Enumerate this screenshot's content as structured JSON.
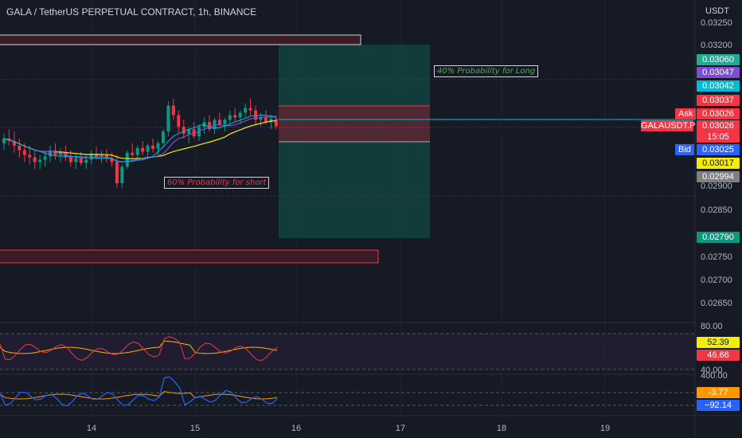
{
  "header": {
    "title": "GALA / TetherUS PERPETUAL CONTRACT, 1h, BINANCE",
    "currency": "USDT"
  },
  "chart_data": {
    "type": "candlestick",
    "symbol": "GALAUSDT.P",
    "timeframe": "1h",
    "exchange": "BINANCE",
    "price_axis": {
      "ticks": [
        "0.03250",
        "0.03200",
        "0.02900",
        "0.02850",
        "0.02750",
        "0.02700",
        "0.02650"
      ],
      "ylim": [
        0.0262,
        0.0327
      ]
    },
    "time_axis": {
      "ticks": [
        "14",
        "15",
        "16",
        "17",
        "18",
        "19"
      ]
    },
    "candles": [
      [
        0.0299,
        0.0301,
        0.02975,
        0.03
      ],
      [
        0.03,
        0.0302,
        0.02985,
        0.02995
      ],
      [
        0.02995,
        0.03015,
        0.0297,
        0.02985
      ],
      [
        0.02985,
        0.03,
        0.0296,
        0.02975
      ],
      [
        0.02975,
        0.0299,
        0.0295,
        0.02965
      ],
      [
        0.02965,
        0.02985,
        0.02945,
        0.0296
      ],
      [
        0.0296,
        0.02975,
        0.02935,
        0.0295
      ],
      [
        0.0295,
        0.02965,
        0.02935,
        0.02955
      ],
      [
        0.02955,
        0.02975,
        0.0294,
        0.02962
      ],
      [
        0.02962,
        0.02985,
        0.0295,
        0.02975
      ],
      [
        0.02975,
        0.0299,
        0.02955,
        0.02965
      ],
      [
        0.02965,
        0.0298,
        0.0295,
        0.0297
      ],
      [
        0.0297,
        0.02985,
        0.02952,
        0.0296
      ],
      [
        0.0296,
        0.02975,
        0.0294,
        0.0295
      ],
      [
        0.0295,
        0.02968,
        0.02935,
        0.02958
      ],
      [
        0.02958,
        0.02972,
        0.02942,
        0.02948
      ],
      [
        0.02948,
        0.02965,
        0.02935,
        0.02955
      ],
      [
        0.02955,
        0.02975,
        0.02945,
        0.02968
      ],
      [
        0.02968,
        0.02982,
        0.02955,
        0.0296
      ],
      [
        0.0296,
        0.02975,
        0.02948,
        0.02965
      ],
      [
        0.02965,
        0.02978,
        0.0295,
        0.02958
      ],
      [
        0.02958,
        0.0297,
        0.0294,
        0.0295
      ],
      [
        0.0295,
        0.02965,
        0.02895,
        0.02905
      ],
      [
        0.02905,
        0.02945,
        0.02895,
        0.0294
      ],
      [
        0.0294,
        0.02975,
        0.02935,
        0.0297
      ],
      [
        0.0297,
        0.0299,
        0.0296,
        0.02965
      ],
      [
        0.02965,
        0.02985,
        0.02955,
        0.0298
      ],
      [
        0.0298,
        0.02995,
        0.02965,
        0.02972
      ],
      [
        0.02972,
        0.0299,
        0.0296,
        0.02985
      ],
      [
        0.02985,
        0.03,
        0.0297,
        0.02978
      ],
      [
        0.02978,
        0.02995,
        0.02965,
        0.0299
      ],
      [
        0.0299,
        0.0302,
        0.0298,
        0.03015
      ],
      [
        0.03015,
        0.0308,
        0.03005,
        0.0307
      ],
      [
        0.0307,
        0.03085,
        0.0304,
        0.0305
      ],
      [
        0.0305,
        0.0306,
        0.0301,
        0.03025
      ],
      [
        0.03025,
        0.0304,
        0.03,
        0.0301
      ],
      [
        0.0301,
        0.03025,
        0.0299,
        0.0302
      ],
      [
        0.0302,
        0.03035,
        0.03,
        0.03005
      ],
      [
        0.03005,
        0.0303,
        0.02995,
        0.03025
      ],
      [
        0.03025,
        0.03045,
        0.0301,
        0.03035
      ],
      [
        0.03035,
        0.0305,
        0.03015,
        0.0302
      ],
      [
        0.0302,
        0.03045,
        0.0301,
        0.0304
      ],
      [
        0.0304,
        0.03055,
        0.03025,
        0.0303
      ],
      [
        0.0303,
        0.03045,
        0.03015,
        0.0304
      ],
      [
        0.0304,
        0.0306,
        0.0303,
        0.0305
      ],
      [
        0.0305,
        0.03065,
        0.03035,
        0.03045
      ],
      [
        0.03045,
        0.0306,
        0.0303,
        0.03055
      ],
      [
        0.03055,
        0.03075,
        0.03045,
        0.03065
      ],
      [
        0.03065,
        0.03085,
        0.0305,
        0.0306
      ],
      [
        0.0306,
        0.0307,
        0.0303,
        0.0304
      ],
      [
        0.0304,
        0.03055,
        0.03025,
        0.03045
      ],
      [
        0.03045,
        0.0306,
        0.0303,
        0.03035
      ],
      [
        0.03035,
        0.0305,
        0.0302,
        0.03042
      ],
      [
        0.03042,
        0.0305,
        0.0302,
        0.03026
      ]
    ],
    "price_tags": [
      {
        "value": "0.03060",
        "color": "#22ab94"
      },
      {
        "value": "0.03047",
        "color": "#7b4fd0"
      },
      {
        "value": "0.03042",
        "color": "#00bcd4"
      },
      {
        "value": "0.03037",
        "color": "#f23645"
      },
      {
        "value": "0.03026",
        "color": "#f23645"
      },
      {
        "value": "GALAUSDT.P",
        "color": "#f23645"
      },
      {
        "value": "15:05",
        "color": "#f23645"
      },
      {
        "value": "0.03025",
        "color": "#2962ff"
      },
      {
        "value": "0.03017",
        "color": "#f4ed0b"
      },
      {
        "value": "0.02994",
        "color": "#808080"
      },
      {
        "value": "0.02790",
        "color": "#089981"
      }
    ],
    "side_labels": {
      "ask": "Ask",
      "bid": "Bid"
    },
    "annotations": {
      "long": "40% Probability  for Long",
      "short": "60% Probability  for short"
    },
    "indicator1": {
      "levels": [
        "80.00",
        "40.00"
      ],
      "tags": [
        {
          "value": "52.39",
          "color": "#f4ed0b"
        },
        {
          "value": "46.66",
          "color": "#f23645"
        }
      ]
    },
    "indicator2": {
      "levels": [
        "400.00"
      ],
      "tags": [
        {
          "value": "-3.77",
          "color": "#ff9800"
        },
        {
          "value": "−92.14",
          "color": "#2962ff"
        }
      ]
    }
  }
}
